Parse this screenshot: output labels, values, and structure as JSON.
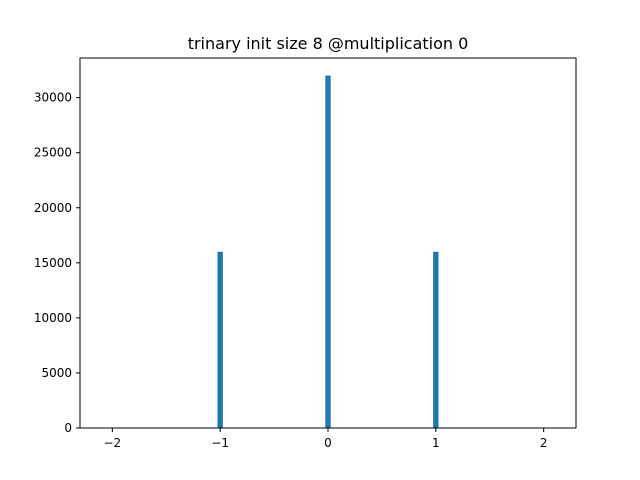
{
  "chart_data": {
    "type": "bar",
    "title": "trinary init size 8 @multiplication 0",
    "xlabel": "",
    "ylabel": "",
    "x": [
      -1,
      0,
      1
    ],
    "values": [
      16000,
      32000,
      16000
    ],
    "bar_width": 0.05,
    "xlim": [
      -2.3,
      2.3
    ],
    "ylim": [
      0,
      33600
    ],
    "xticks": [
      -2,
      -1,
      0,
      1,
      2
    ],
    "xtick_labels": [
      "−2",
      "−1",
      "0",
      "1",
      "2"
    ],
    "yticks": [
      0,
      5000,
      10000,
      15000,
      20000,
      25000,
      30000
    ],
    "ytick_labels": [
      "0",
      "5000",
      "10000",
      "15000",
      "20000",
      "25000",
      "30000"
    ],
    "grid": false,
    "legend": "none",
    "bar_color": "#1f77b4"
  }
}
